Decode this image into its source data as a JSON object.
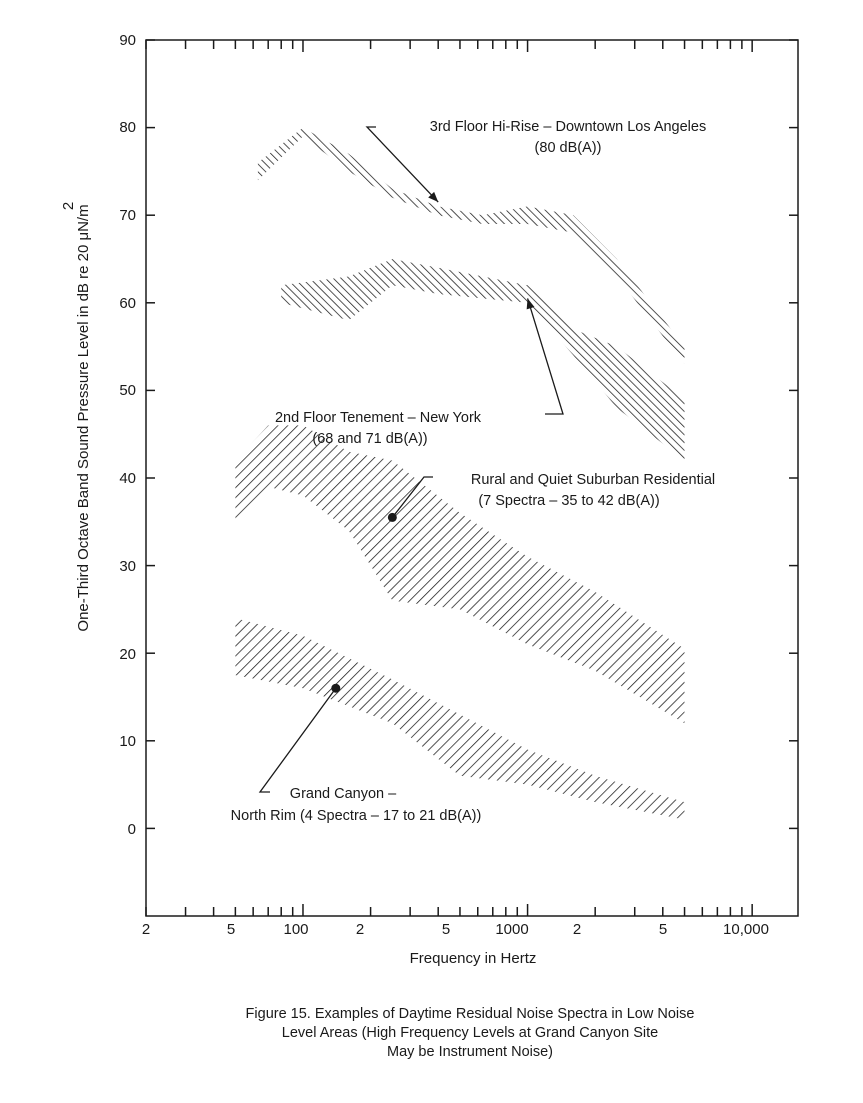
{
  "chart_data": {
    "type": "area",
    "title": "",
    "xlabel": "Frequency in Hertz",
    "ylabel": "One-Third Octave Band Sound Pressure Level in dB re 20 μN/m",
    "ylabel_superscript": "2",
    "x_scale": "log",
    "xlim": [
      20,
      16000
    ],
    "ylim": [
      -10,
      90
    ],
    "x_tick_labels": [
      {
        "x": 20,
        "label": "2"
      },
      {
        "x": 50,
        "label": "5"
      },
      {
        "x": 100,
        "label": "100"
      },
      {
        "x": 200,
        "label": "2"
      },
      {
        "x": 500,
        "label": "5"
      },
      {
        "x": 1000,
        "label": "1000"
      },
      {
        "x": 2000,
        "label": "2"
      },
      {
        "x": 5000,
        "label": "5"
      },
      {
        "x": 10000,
        "label": "10,000"
      }
    ],
    "y_ticks": [
      0,
      10,
      20,
      30,
      40,
      50,
      60,
      70,
      80,
      90
    ],
    "y_tick_labels": [
      "0",
      "10",
      "20",
      "30",
      "40",
      "50",
      "60",
      "70",
      "80",
      "90"
    ],
    "series": [
      {
        "name": "3rd Floor Hi-Rise - Downtown Los Angeles",
        "x": [
          63,
          100,
          160,
          250,
          400,
          630,
          1000,
          1600,
          2500,
          5000
        ],
        "lower": [
          74,
          79,
          75,
          72,
          70,
          69,
          69,
          68,
          63,
          53
        ],
        "upper": [
          76,
          80,
          77,
          73,
          71,
          70,
          71,
          70,
          65,
          55
        ],
        "hatch": "dense"
      },
      {
        "name": "2nd Floor Tenement - New York",
        "x": [
          80,
          160,
          250,
          400,
          1000,
          1600,
          2500,
          5000
        ],
        "lower": [
          60,
          58,
          62,
          61,
          60,
          54,
          48,
          42
        ],
        "upper": [
          62,
          63,
          65,
          64,
          62,
          57,
          55,
          49
        ],
        "hatch": "dense"
      },
      {
        "name": "Rural and Quiet Suburban Residential",
        "x": [
          50,
          70,
          100,
          160,
          250,
          500,
          1000,
          2000,
          5000
        ],
        "lower": [
          34.5,
          39,
          38,
          34,
          26,
          25,
          21,
          18,
          12
        ],
        "upper": [
          42,
          46,
          46,
          43,
          42,
          36,
          31,
          27,
          20.5
        ],
        "hatch": "normal"
      },
      {
        "name": "Grand Canyon - North Rim",
        "x": [
          50,
          100,
          250,
          500,
          1000,
          2000,
          5000
        ],
        "lower": [
          17.5,
          16,
          12,
          6,
          5,
          3,
          1
        ],
        "upper": [
          24,
          22,
          17,
          13,
          9,
          6,
          3
        ],
        "hatch": "normal"
      }
    ],
    "annotations": [
      {
        "lines": [
          "3rd Floor Hi-Rise – Downtown Los Angeles",
          "(80 dB(A))"
        ],
        "points_to": {
          "x": 400,
          "y": 71.5
        },
        "style": "arrow"
      },
      {
        "lines": [
          "2nd Floor Tenement – New York",
          "(68 and 71 dB(A))"
        ],
        "points_to": {
          "x": 1000,
          "y": 60.5
        },
        "style": "arrow"
      },
      {
        "lines": [
          "Rural and Quiet Suburban Residential",
          "(7 Spectra – 35 to 42 dB(A))"
        ],
        "points_to": {
          "x": 250,
          "y": 35.5
        },
        "style": "dot"
      },
      {
        "lines": [
          "Grand Canyon –",
          "North Rim (4 Spectra – 17 to 21 dB(A))"
        ],
        "points_to": {
          "x": 140,
          "y": 16
        },
        "style": "dot"
      }
    ],
    "legend": "none"
  },
  "caption": {
    "line1": "Figure 15.  Examples of Daytime Residual Noise Spectra in Low Noise",
    "line2": "Level Areas (High Frequency Levels at Grand Canyon Site",
    "line3": "May be Instrument Noise)"
  },
  "colors": {
    "ink": "#1a1a1a",
    "background": "#ffffff"
  }
}
